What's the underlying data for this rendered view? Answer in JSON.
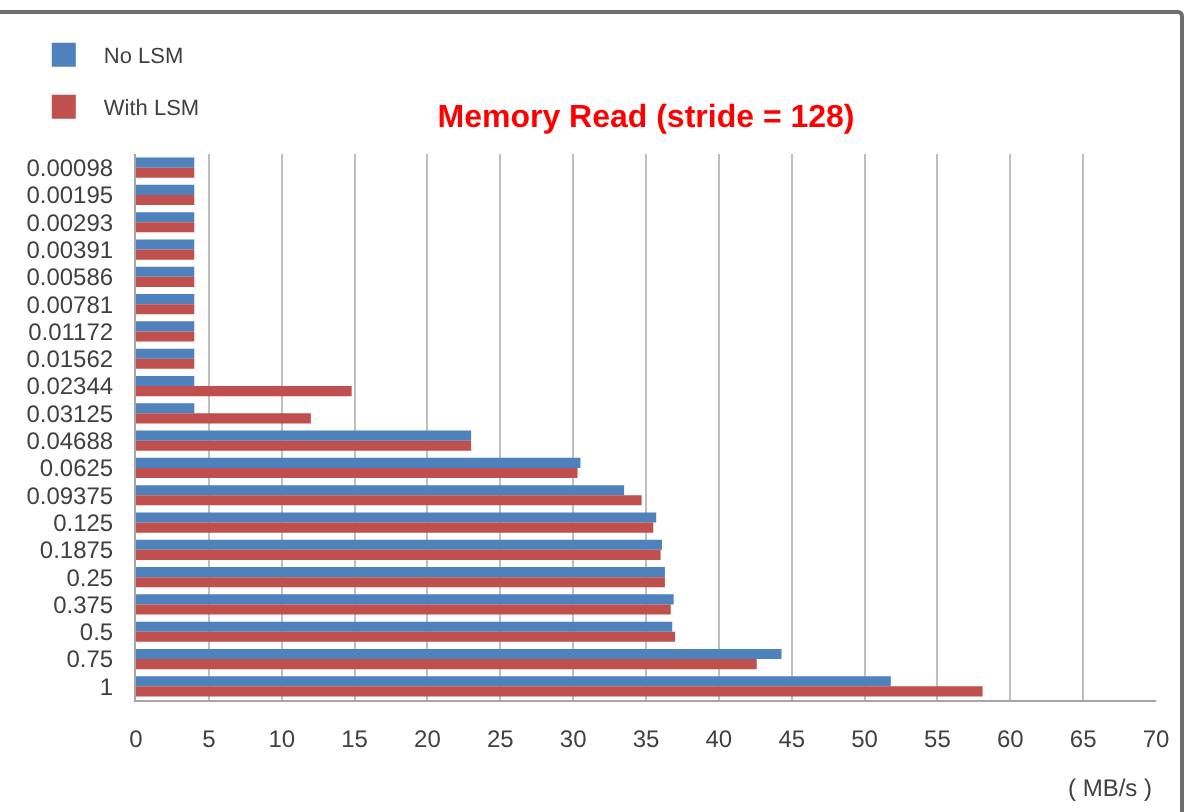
{
  "chart_data": {
    "type": "bar",
    "title": "Memory Read (stride = 128)",
    "xlabel": "( MB/s )",
    "orientation": "horizontal",
    "categories": [
      "0.00098",
      "0.00195",
      "0.00293",
      "0.00391",
      "0.00586",
      "0.00781",
      "0.01172",
      "0.01562",
      "0.02344",
      "0.03125",
      "0.04688",
      "0.0625",
      "0.09375",
      "0.125",
      "0.1875",
      "0.25",
      "0.375",
      "0.5",
      "0.75",
      "1"
    ],
    "series": [
      {
        "name": "No LSM",
        "color": "#4f81bd",
        "values": [
          4,
          4,
          4,
          4,
          4,
          4,
          4,
          4,
          4,
          4,
          23,
          30.5,
          33.5,
          35.7,
          36.1,
          36.3,
          36.9,
          36.8,
          44.3,
          51.8
        ]
      },
      {
        "name": "With LSM",
        "color": "#c0504d",
        "values": [
          4,
          4,
          4,
          4,
          4,
          4,
          4,
          4,
          14.8,
          12,
          23,
          30.3,
          34.7,
          35.5,
          36,
          36.3,
          36.7,
          37,
          42.6,
          58.1
        ]
      }
    ],
    "xlim": [
      0,
      70
    ],
    "xticks": [
      0,
      5,
      10,
      15,
      20,
      25,
      30,
      35,
      40,
      45,
      50,
      55,
      60,
      65,
      70
    ],
    "grid": "x",
    "legend": "top left"
  }
}
